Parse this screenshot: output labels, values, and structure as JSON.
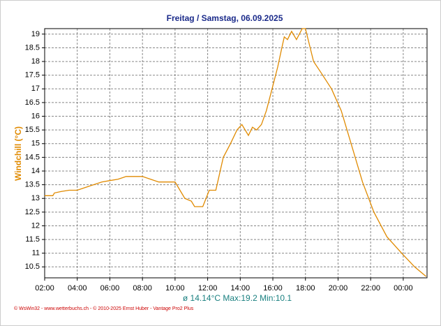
{
  "chart_data": {
    "type": "line",
    "title": "Freitag / Samstag, 06.09.2025",
    "y_label": "Windchill  (°C)",
    "annotation": "ø 14.14°C  Max:19.2  Min:10.1",
    "footer": "© WsWin32 - www.wetterbuchs.ch - © 2010-2025 Ernst Huber - Vantage Pro2 Plus",
    "color": "#e08a00",
    "grid": true,
    "x": [
      2.0,
      2.5,
      2.6,
      3.0,
      3.5,
      4.0,
      4.5,
      5.0,
      5.5,
      6.0,
      6.5,
      7.0,
      7.5,
      8.0,
      8.5,
      9.0,
      9.5,
      10.0,
      10.3,
      10.6,
      11.0,
      11.2,
      11.7,
      12.1,
      12.5,
      12.96,
      13.4,
      13.8,
      14.1,
      14.5,
      14.75,
      15.0,
      15.3,
      15.6,
      15.95,
      16.3,
      16.55,
      16.7,
      16.9,
      17.15,
      17.45,
      17.8,
      18.0,
      18.5,
      18.95,
      19.6,
      20.2,
      20.9,
      21.5,
      22.2,
      23.0,
      23.9,
      24.7,
      25.4
    ],
    "values": [
      13.1,
      13.1,
      13.2,
      13.25,
      13.3,
      13.3,
      13.4,
      13.5,
      13.6,
      13.65,
      13.7,
      13.8,
      13.8,
      13.8,
      13.7,
      13.6,
      13.6,
      13.6,
      13.3,
      13.0,
      12.9,
      12.7,
      12.7,
      13.3,
      13.3,
      14.5,
      15.0,
      15.5,
      15.7,
      15.3,
      15.6,
      15.5,
      15.7,
      16.2,
      17.0,
      17.8,
      18.5,
      18.9,
      18.8,
      19.1,
      18.8,
      19.2,
      19.2,
      18.0,
      17.6,
      17.0,
      16.2,
      14.8,
      13.6,
      12.5,
      11.6,
      11.0,
      10.5,
      10.15
    ],
    "xlim": [
      2,
      25.46
    ],
    "xticks": [
      {
        "value": 2,
        "label": "02:00"
      },
      {
        "value": 4,
        "label": "04:00"
      },
      {
        "value": 6,
        "label": "06:00"
      },
      {
        "value": 8,
        "label": "08:00"
      },
      {
        "value": 10,
        "label": "10:00"
      },
      {
        "value": 12,
        "label": "12:00"
      },
      {
        "value": 14,
        "label": "14:00"
      },
      {
        "value": 16,
        "label": "16:00"
      },
      {
        "value": 18,
        "label": "18:00"
      },
      {
        "value": 20,
        "label": "20:00"
      },
      {
        "value": 22,
        "label": "22:00"
      },
      {
        "value": 24,
        "label": "00:00"
      }
    ],
    "ylim": [
      10.1,
      19.2
    ],
    "yticks": [
      10.5,
      11,
      11.5,
      12,
      12.5,
      13,
      13.5,
      14,
      14.5,
      15,
      15.5,
      16,
      16.5,
      17,
      17.5,
      18,
      18.5,
      19
    ]
  }
}
